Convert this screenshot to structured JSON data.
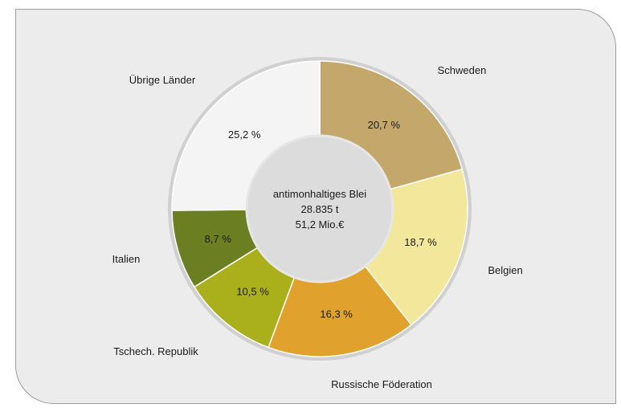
{
  "chart_data": {
    "type": "pie",
    "variant": "donut",
    "center_label": [
      "antimonhaltiges Blei",
      "28.835 t",
      "51,2 Mio.€"
    ],
    "slices": [
      {
        "category": "Schweden",
        "value": 20.7,
        "label": "20,7 %",
        "color": "#c4a86b"
      },
      {
        "category": "Belgien",
        "value": 18.7,
        "label": "18,7 %",
        "color": "#f3e79c"
      },
      {
        "category": "Russische Föderation",
        "value": 16.3,
        "label": "16,3 %",
        "color": "#e0a22d"
      },
      {
        "category": "Tschech. Republik",
        "value": 10.5,
        "label": "10,5 %",
        "color": "#aab01c"
      },
      {
        "category": "Italien",
        "value": 8.7,
        "label": "8,7 %",
        "color": "#6b7f22"
      },
      {
        "category": "Übrige Länder",
        "value": 25.2,
        "label": "25,2 %",
        "color": "#f4f4f4"
      }
    ],
    "start_angle_deg": 0,
    "direction": "clockwise",
    "legend": "category labels outside slices"
  },
  "colors": {
    "panel_background": "#ececec",
    "ring_border": "#c8c8c8",
    "center_disc": "#dedede"
  }
}
